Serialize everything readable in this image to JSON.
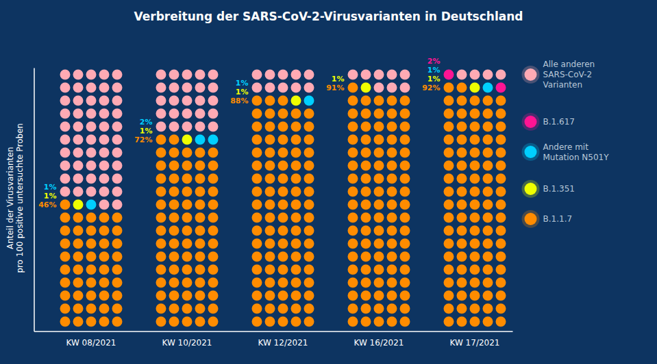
{
  "chart_data": {
    "type": "waffle",
    "title": "Verbreitung der SARS-CoV-2-Virusvarianten in Deutschland",
    "ylabel": "Anteil der Virusvarianten\npro 100 positive untersuchte Proben",
    "categories": [
      "KW 08/2021",
      "KW 10/2021",
      "KW 12/2021",
      "KW 16/2021",
      "KW 17/2021"
    ],
    "series": [
      {
        "name": "B.1.1.7",
        "color": "#FF8C00",
        "values": [
          46,
          72,
          88,
          91,
          92
        ],
        "value_labels": [
          "46%",
          "72%",
          "88%",
          "91%",
          "92%"
        ]
      },
      {
        "name": "B.1.351",
        "color": "#EEFF00",
        "values": [
          1,
          1,
          1,
          1,
          1
        ],
        "value_labels": [
          "1%",
          "1%",
          "1%",
          "1%",
          "1%"
        ]
      },
      {
        "name": "Andere mit\nMutation N501Y",
        "color": "#00CFFF",
        "values": [
          1,
          2,
          1,
          0,
          1
        ],
        "value_labels": [
          "1%",
          "2%",
          "1%",
          null,
          "1%"
        ]
      },
      {
        "name": "B.1.617",
        "color": "#FF1493",
        "values": [
          0,
          0,
          0,
          0,
          2
        ],
        "value_labels": [
          null,
          null,
          null,
          null,
          "2%"
        ]
      },
      {
        "name": "Alle anderen\nSARS-CoV-2\nVarianten",
        "color": "#FFAAB4",
        "values": [
          52,
          25,
          10,
          8,
          4
        ],
        "value_labels": [
          null,
          null,
          null,
          null,
          null
        ]
      }
    ],
    "stacked": true,
    "data_labels": true,
    "tick_labels": "x",
    "grid": false,
    "legend": "right"
  }
}
